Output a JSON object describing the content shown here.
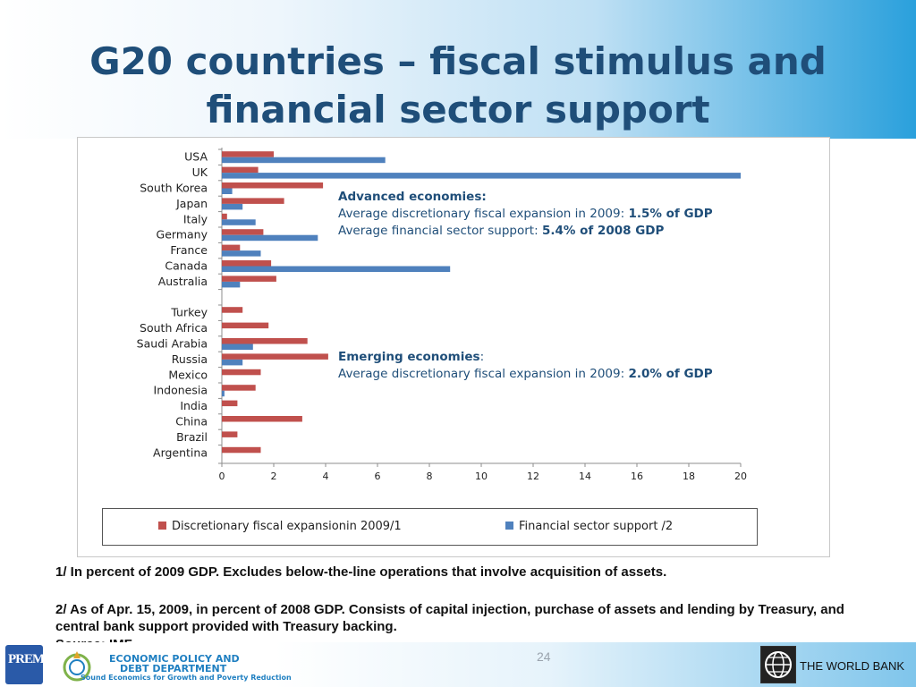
{
  "slide": {
    "title_line1": "G20 countries – fiscal stimulus and",
    "title_line2": "financial sector support",
    "page_number": "24"
  },
  "annotations": {
    "advanced": {
      "heading": "Advanced economies:",
      "line1_prefix": "Average discretionary fiscal expansion in 2009: ",
      "line1_value": "1.5% of GDP",
      "line2_prefix": "Average financial sector support: ",
      "line2_value": "5.4% of 2008 GDP"
    },
    "emerging": {
      "heading": "Emerging economies",
      "heading_suffix": ":",
      "line1_prefix": "Average discretionary fiscal expansion in 2009: ",
      "line1_value": "2.0% of GDP"
    }
  },
  "notes": {
    "note1": "1/ In percent of 2009 GDP. Excludes below-the-line operations that involve acquisition of assets.",
    "note2": "2/ As of Apr. 15, 2009, in percent of 2008 GDP. Consists of capital injection, purchase of assets and lending by Treasury, and central bank support provided with Treasury backing.",
    "source": "Source: IMF"
  },
  "footer": {
    "org_line1": "ECONOMIC POLICY AND",
    "org_line2": "DEBT DEPARTMENT",
    "org_tagline": "Sound Economics for Growth and Poverty Reduction",
    "prem_logo_text": "PREM",
    "world_bank": "THE WORLD BANK"
  },
  "colors": {
    "fiscal": "#c0504d",
    "financial": "#4f81bd",
    "title": "#1f4e79"
  },
  "chart_data": {
    "type": "bar",
    "orientation": "horizontal",
    "categories": [
      "USA",
      "UK",
      "South Korea",
      "Japan",
      "Italy",
      "Germany",
      "France",
      "Canada",
      "Australia",
      "",
      "Turkey",
      "South Africa",
      "Saudi Arabia",
      "Russia",
      "Mexico",
      "Indonesia",
      "India",
      "China",
      "Brazil",
      "Argentina"
    ],
    "series": [
      {
        "name": "Discretionary fiscal expansionin 2009/1",
        "values": [
          2.0,
          1.4,
          3.9,
          2.4,
          0.2,
          1.6,
          0.7,
          1.9,
          2.1,
          null,
          0.8,
          1.8,
          3.3,
          4.1,
          1.5,
          1.3,
          0.6,
          3.1,
          0.6,
          1.5
        ]
      },
      {
        "name": "Financial sector support /2",
        "values": [
          6.3,
          20.0,
          0.4,
          0.8,
          1.3,
          3.7,
          1.5,
          8.8,
          0.7,
          null,
          0,
          0,
          1.2,
          0.8,
          0,
          0.1,
          0,
          0,
          0,
          0
        ]
      }
    ],
    "xlim": [
      0,
      20
    ],
    "x_ticks": [
      "0",
      "2",
      "4",
      "6",
      "8",
      "10",
      "12",
      "14",
      "16",
      "18",
      "20"
    ],
    "grid": false,
    "legend_position": "bottom"
  }
}
